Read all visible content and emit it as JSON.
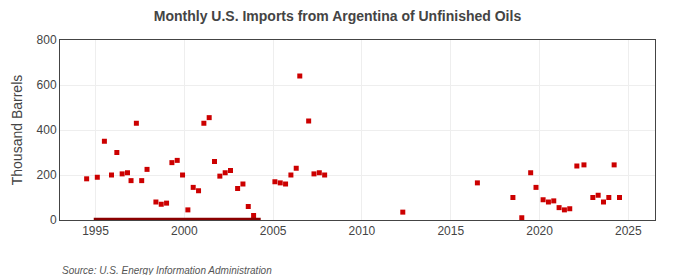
{
  "chart_data": {
    "type": "scatter",
    "title": "Monthly U.S. Imports from Argentina of Unfinished Oils",
    "y_label": "Thousand Barrels",
    "annotations": [
      "Source: U.S. Energy Information Administration"
    ],
    "xlim": [
      1993.0,
      2026.5
    ],
    "ylim": [
      0,
      800
    ],
    "xticks": [
      1995,
      2000,
      2005,
      2010,
      2015,
      2020,
      2025
    ],
    "yticks": [
      0,
      200,
      400,
      600,
      800
    ],
    "grid": true,
    "series": [
      {
        "type": "scatter",
        "color": "#cc0000",
        "marker": "square",
        "x": [
          1994.5,
          1995.1,
          1995.5,
          1995.9,
          1996.2,
          1996.5,
          1996.8,
          1997.0,
          1997.3,
          1997.6,
          1997.9,
          1998.4,
          1998.7,
          1999.0,
          1999.3,
          1999.6,
          1999.9,
          2000.2,
          2000.5,
          2000.8,
          2001.1,
          2001.4,
          2001.7,
          2002.0,
          2002.3,
          2002.6,
          2003.0,
          2003.3,
          2003.6,
          2003.9,
          2005.1,
          2005.4,
          2005.7,
          2006.0,
          2006.3,
          2006.5,
          2007.0,
          2007.3,
          2007.6,
          2007.9,
          2012.3,
          2016.5,
          2018.5,
          2019.0,
          2019.5,
          2019.8,
          2020.2,
          2020.5,
          2020.8,
          2021.1,
          2021.4,
          2021.7,
          2022.1,
          2022.5,
          2023.0,
          2023.3,
          2023.6,
          2023.9,
          2024.2,
          2024.5
        ],
        "values": [
          183,
          190,
          350,
          200,
          300,
          205,
          210,
          175,
          430,
          175,
          225,
          80,
          70,
          75,
          255,
          265,
          200,
          45,
          145,
          130,
          430,
          455,
          260,
          195,
          210,
          220,
          140,
          160,
          60,
          20,
          170,
          165,
          160,
          200,
          230,
          640,
          440,
          205,
          210,
          200,
          35,
          165,
          100,
          10,
          210,
          145,
          90,
          80,
          85,
          55,
          45,
          50,
          240,
          245,
          100,
          110,
          80,
          100,
          245,
          100
        ]
      },
      {
        "type": "line",
        "color": "#8b0000",
        "x": [
          1994.9,
          2004.3
        ],
        "values": [
          0,
          0
        ]
      }
    ]
  }
}
